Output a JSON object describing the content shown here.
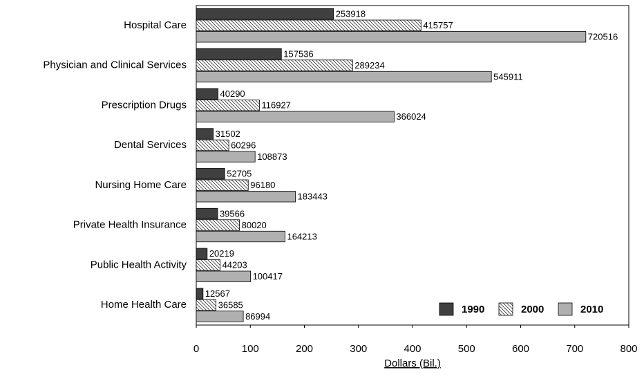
{
  "chart_data": {
    "type": "barh",
    "categories": [
      "Hospital Care",
      "Physician and Clinical Services",
      "Prescription Drugs",
      "Dental Services",
      "Nursing Home Care",
      "Private Health Insurance",
      "Public Health Activity",
      "Home Health Care"
    ],
    "series": [
      {
        "name": "1990",
        "color": "#404040",
        "values": [
          253.918,
          157.536,
          40.29,
          31.502,
          52.705,
          39.566,
          20.219,
          12.567
        ],
        "value_labels": [
          "253918",
          "157536",
          "40290",
          "31502",
          "52705",
          "39566",
          "20219",
          "12567"
        ]
      },
      {
        "name": "2000",
        "color": "#ffffff",
        "hatch": true,
        "values": [
          415.757,
          289.234,
          116.927,
          60.296,
          96.18,
          80.02,
          44.203,
          36.585
        ],
        "value_labels": [
          "415757",
          "289234",
          "116927",
          "60296",
          "96180",
          "80020",
          "44203",
          "36585"
        ]
      },
      {
        "name": "2010",
        "color": "#b0b0b0",
        "values": [
          720.516,
          545.911,
          366.024,
          108.873,
          183.443,
          164.213,
          100.417,
          86.994
        ],
        "value_labels": [
          "720516",
          "545911",
          "366024",
          "108873",
          "183443",
          "164213",
          "100417",
          "86994"
        ]
      }
    ],
    "xlabel": "Dollars (Bil.)",
    "xlim": [
      0,
      800
    ],
    "xticks": [
      0,
      100,
      200,
      300,
      400,
      500,
      600,
      700,
      800
    ],
    "legend": "lower right"
  }
}
